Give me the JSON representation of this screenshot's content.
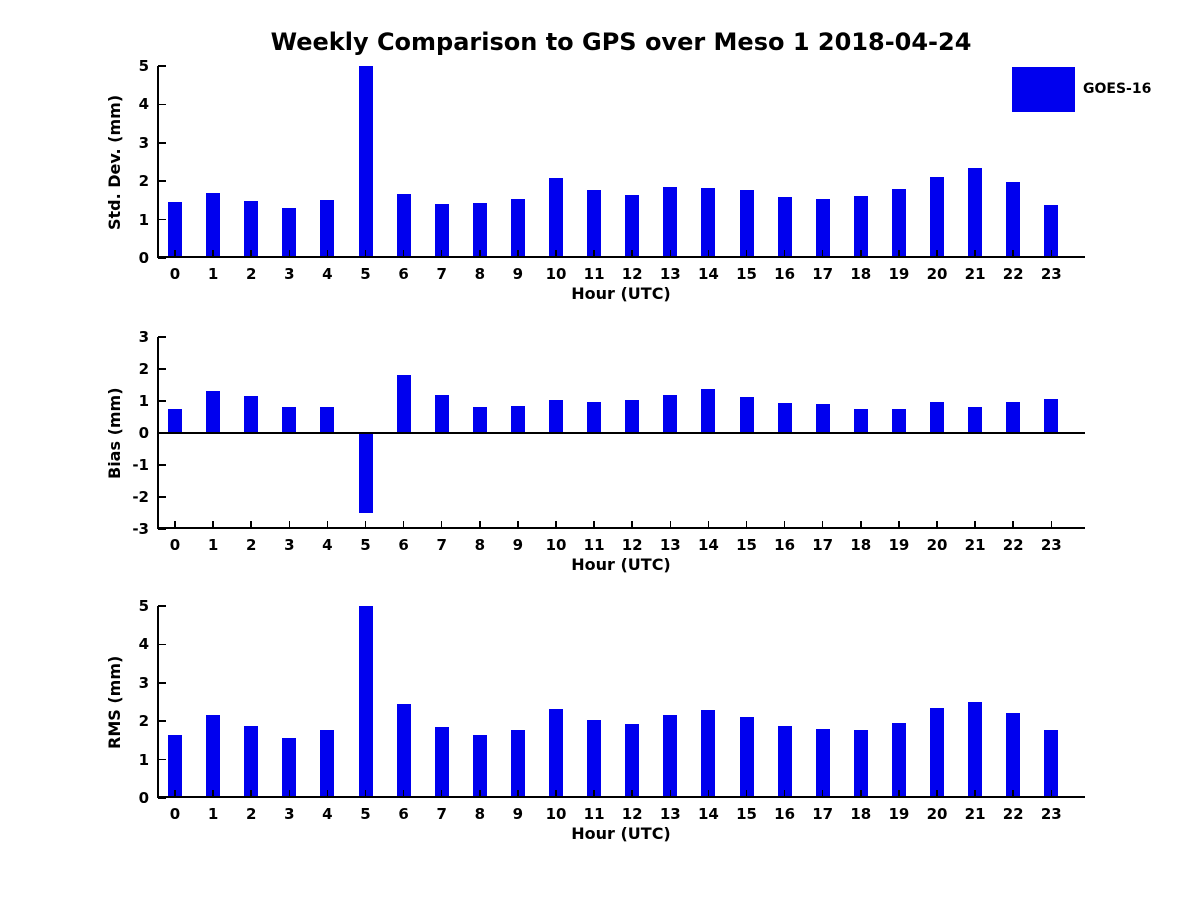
{
  "title": "Weekly Comparison to GPS over Meso 1 2018-04-24",
  "legend": {
    "label": "GOES-16",
    "color": "#0000EE",
    "position": "top-right"
  },
  "bar_color": "#0000EE",
  "chart_data": [
    {
      "type": "bar",
      "name": "std-dev",
      "ylabel": "Std. Dev. (mm)",
      "xlabel": "Hour (UTC)",
      "x": [
        0,
        1,
        2,
        3,
        4,
        5,
        6,
        7,
        8,
        9,
        10,
        11,
        12,
        13,
        14,
        15,
        16,
        17,
        18,
        19,
        20,
        21,
        22,
        23
      ],
      "values": [
        1.45,
        1.7,
        1.48,
        1.3,
        1.52,
        5.0,
        1.67,
        1.4,
        1.42,
        1.53,
        2.08,
        1.78,
        1.65,
        1.85,
        1.83,
        1.77,
        1.58,
        1.54,
        1.62,
        1.79,
        2.11,
        2.34,
        1.97,
        1.37
      ],
      "ylim": [
        0,
        5
      ],
      "yticks": [
        0,
        1,
        2,
        3,
        4,
        5
      ],
      "grid": false,
      "series_name": "GOES-16"
    },
    {
      "type": "bar",
      "name": "bias",
      "ylabel": "Bias (mm)",
      "xlabel": "Hour (UTC)",
      "x": [
        0,
        1,
        2,
        3,
        4,
        5,
        6,
        7,
        8,
        9,
        10,
        11,
        12,
        13,
        14,
        15,
        16,
        17,
        18,
        19,
        20,
        21,
        22,
        23
      ],
      "values": [
        0.76,
        1.31,
        1.15,
        0.81,
        0.81,
        -2.5,
        1.81,
        1.18,
        0.81,
        0.85,
        1.03,
        0.96,
        1.04,
        1.18,
        1.36,
        1.12,
        0.93,
        0.9,
        0.75,
        0.75,
        0.97,
        0.81,
        0.96,
        1.07
      ],
      "ylim": [
        -3,
        3
      ],
      "yticks": [
        -3,
        -2,
        -1,
        0,
        1,
        2,
        3
      ],
      "grid": false,
      "series_name": "GOES-16"
    },
    {
      "type": "bar",
      "name": "rms",
      "ylabel": "RMS (mm)",
      "xlabel": "Hour (UTC)",
      "x": [
        0,
        1,
        2,
        3,
        4,
        5,
        6,
        7,
        8,
        9,
        10,
        11,
        12,
        13,
        14,
        15,
        16,
        17,
        18,
        19,
        20,
        21,
        22,
        23
      ],
      "values": [
        1.63,
        2.15,
        1.87,
        1.57,
        1.77,
        5.0,
        2.46,
        1.85,
        1.63,
        1.77,
        2.31,
        2.03,
        1.94,
        2.17,
        2.28,
        2.1,
        1.87,
        1.79,
        1.76,
        1.95,
        2.35,
        2.49,
        2.21,
        1.76
      ],
      "ylim": [
        0,
        5
      ],
      "yticks": [
        0,
        1,
        2,
        3,
        4,
        5
      ],
      "grid": false,
      "series_name": "GOES-16"
    }
  ]
}
